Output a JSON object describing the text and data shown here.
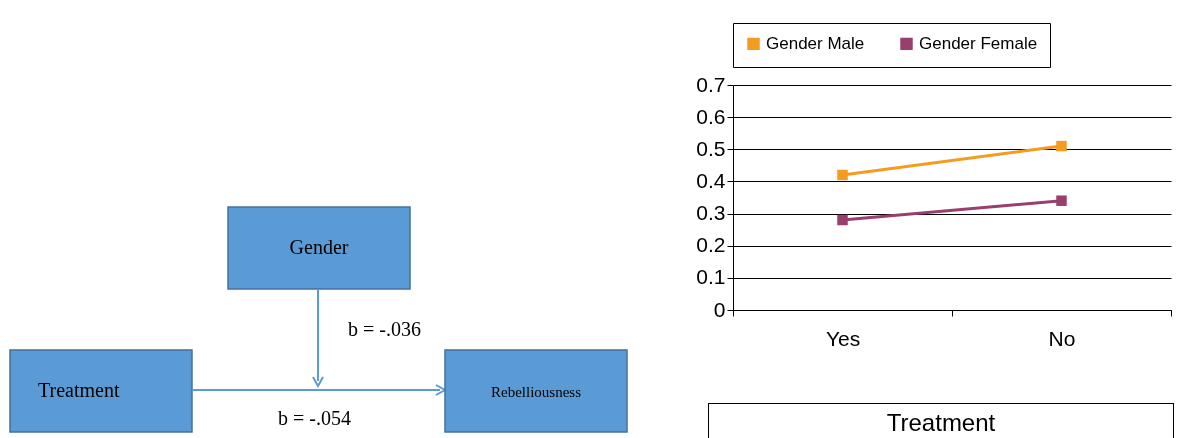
{
  "chart_data": [
    {
      "type": "other",
      "annotations": [
        "Gender",
        "Treatment",
        "Rebelliousness",
        "b = -.036",
        "b = -.054"
      ]
    },
    {
      "type": "line",
      "xlabel": "Treatment",
      "categories": [
        "Yes",
        "No"
      ],
      "series": [
        {
          "name": "Gender Male",
          "color": "#f39c1f",
          "values": [
            0.42,
            0.51
          ]
        },
        {
          "name": "Gender Female",
          "color": "#993f6e",
          "values": [
            0.28,
            0.34
          ]
        }
      ],
      "ylim": [
        0,
        0.7
      ],
      "yticks": [
        {
          "value": 0,
          "label": "0"
        },
        0.1,
        0.2,
        0.3,
        0.4,
        0.5,
        0.6,
        0.7
      ],
      "grid": "y",
      "legend": "top",
      "marker": "square"
    }
  ]
}
